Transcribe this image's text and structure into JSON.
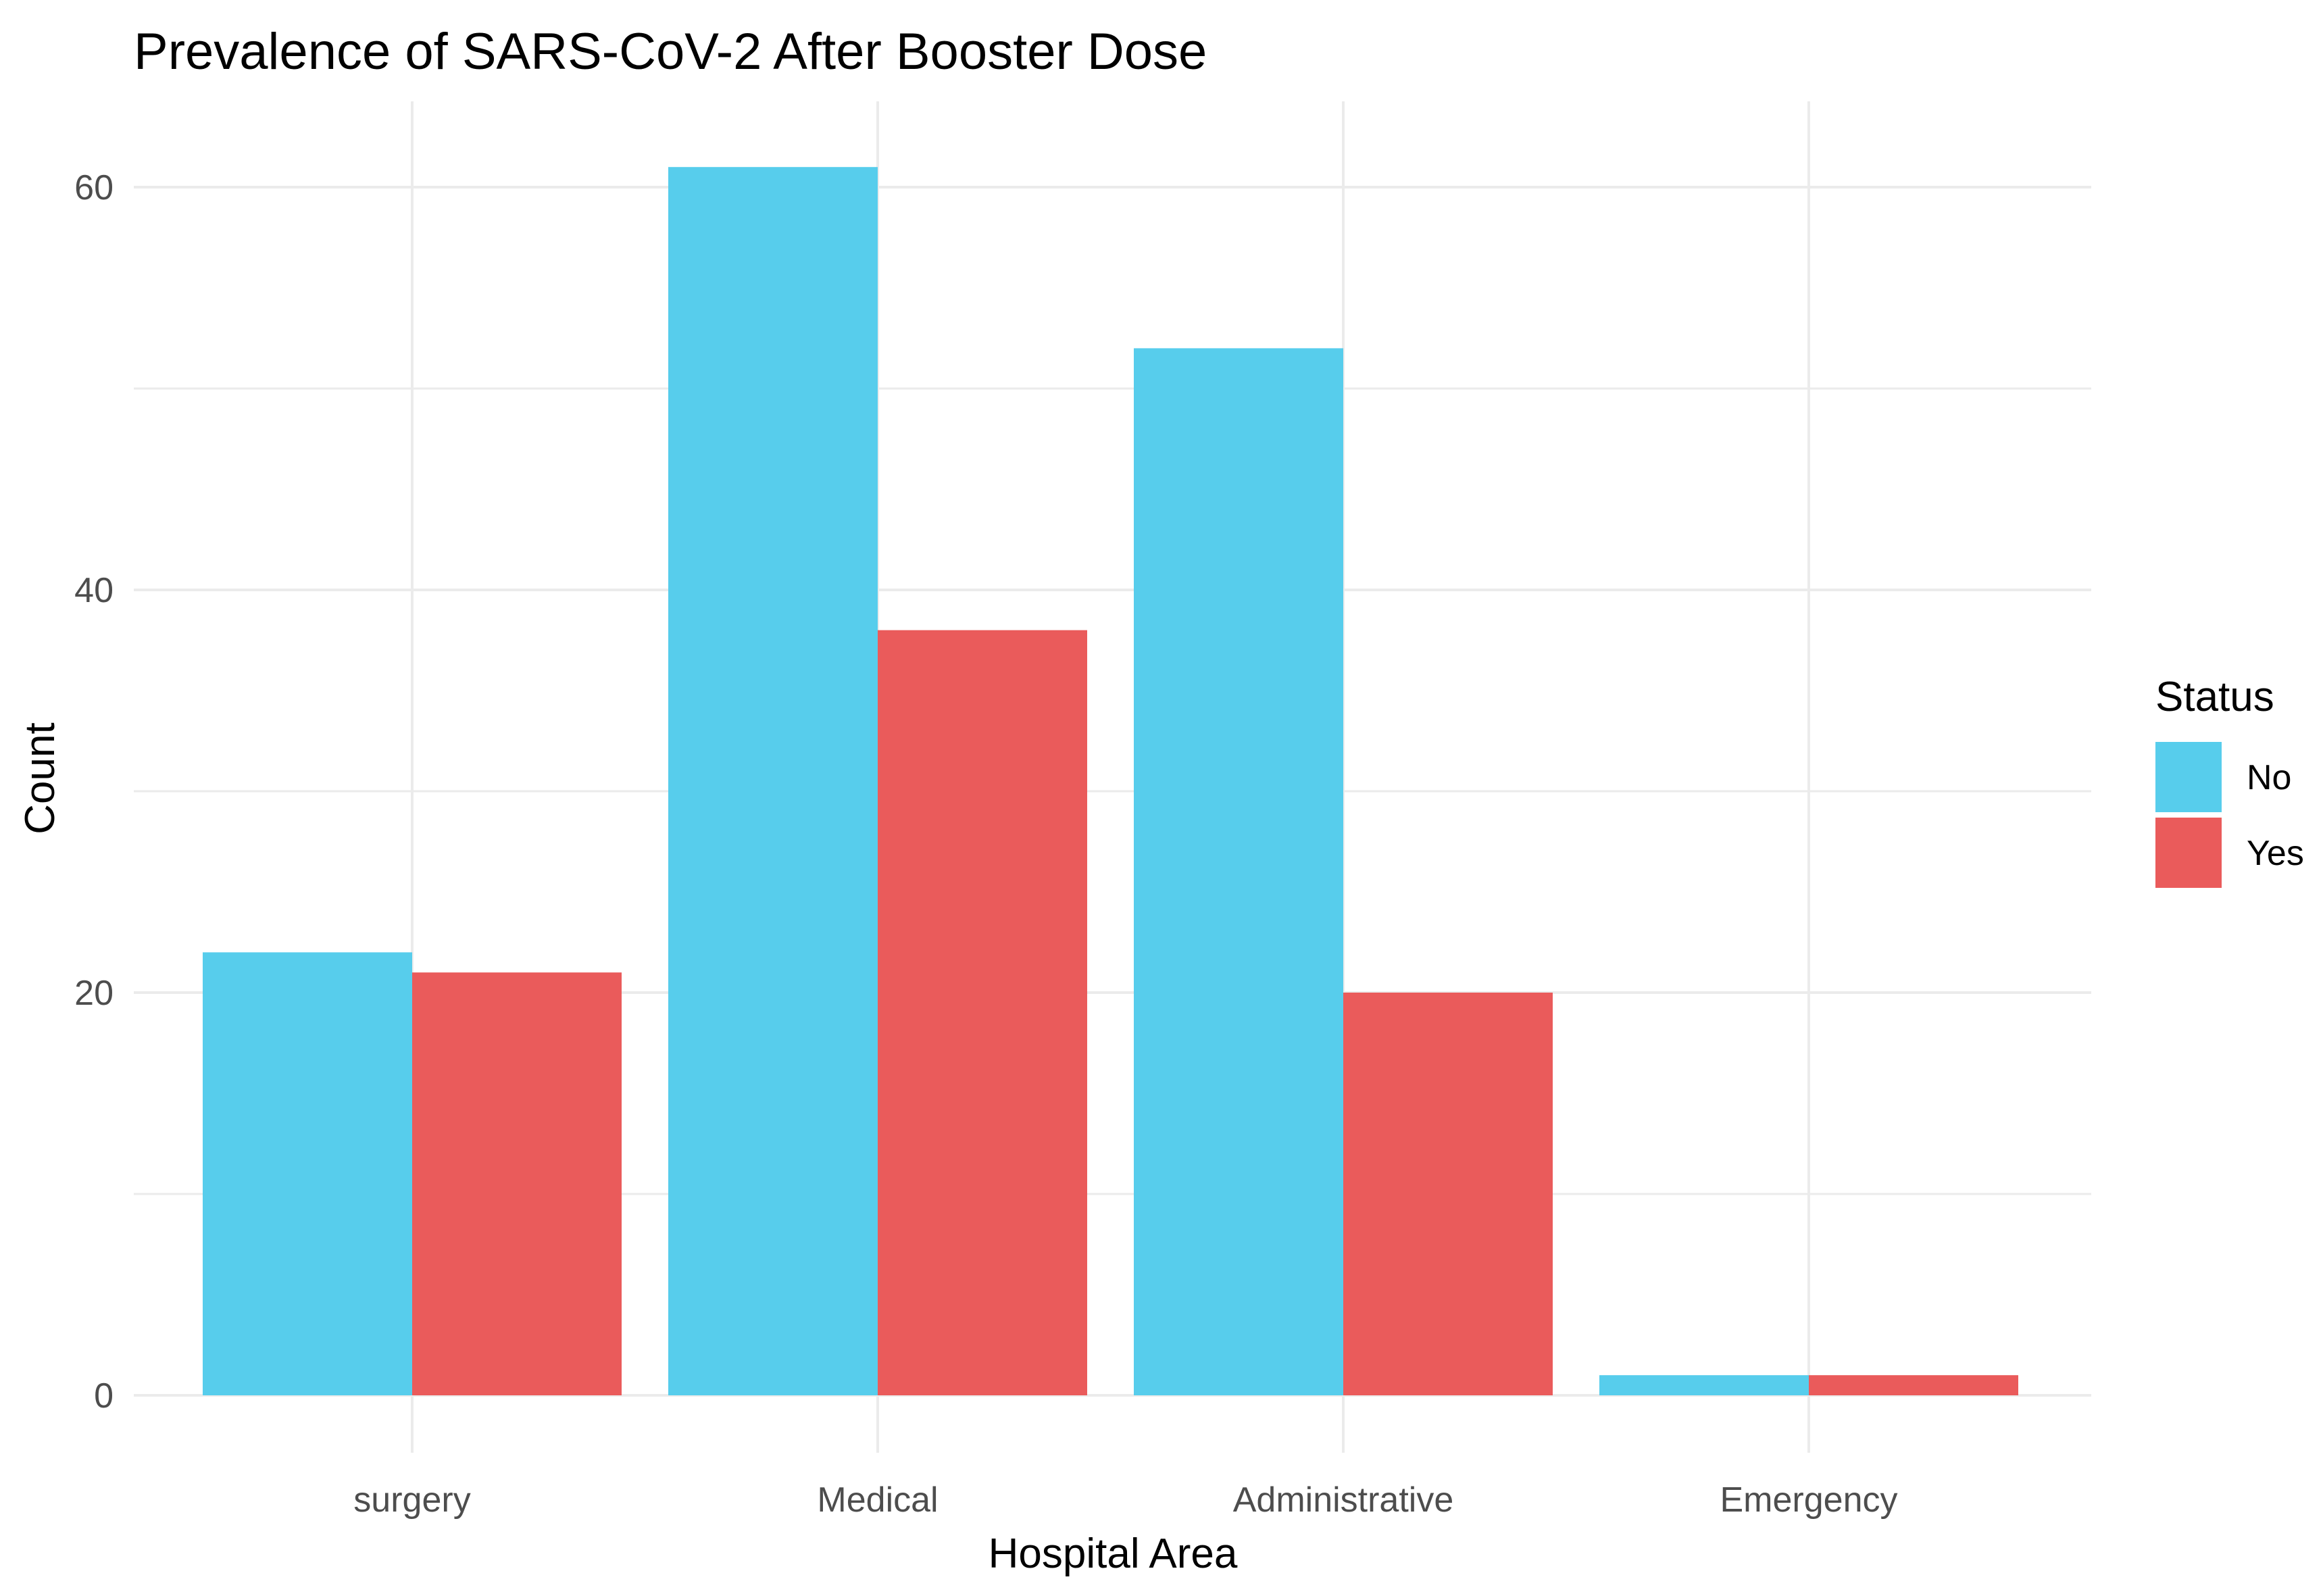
{
  "chart_data": {
    "type": "bar",
    "title": "Prevalence of SARS-CoV-2 After Booster Dose",
    "xlabel": "Hospital Area",
    "ylabel": "Count",
    "categories": [
      "surgery",
      "Medical",
      "Administrative",
      "Emergency"
    ],
    "series": [
      {
        "name": "No",
        "color": "#57CDEC",
        "values": [
          22,
          61,
          52,
          1
        ]
      },
      {
        "name": "Yes",
        "color": "#EA5B5B",
        "values": [
          21,
          38,
          20,
          1
        ]
      }
    ],
    "ylim": [
      0,
      61
    ],
    "yticks": [
      "0",
      "20",
      "40",
      "60"
    ],
    "grid": true,
    "legend": {
      "title": "Status",
      "position": "right"
    },
    "colors": {
      "grid": "#EBEBEB",
      "tick_text": "#4D4D4D",
      "background": "#FFFFFF"
    }
  }
}
